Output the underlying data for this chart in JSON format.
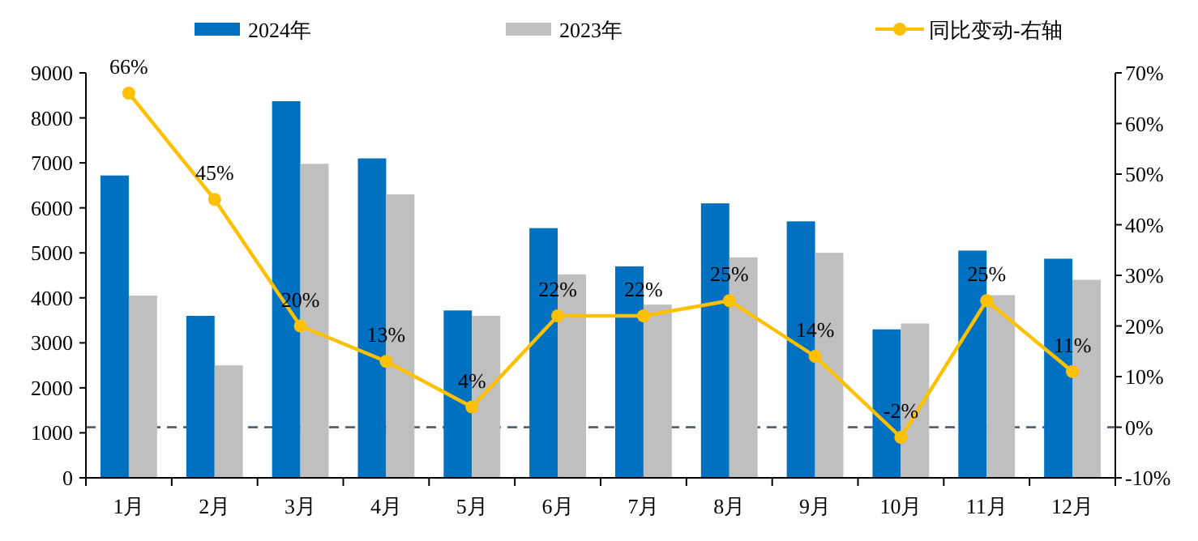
{
  "chart_data": {
    "type": "bar",
    "categories": [
      "1月",
      "2月",
      "3月",
      "4月",
      "5月",
      "6月",
      "7月",
      "8月",
      "9月",
      "10月",
      "11月",
      "12月"
    ],
    "series": [
      {
        "name": "2024年",
        "color": "#0070c0",
        "values": [
          6720,
          3600,
          8370,
          7100,
          3720,
          5550,
          4700,
          6100,
          5700,
          3300,
          5050,
          4870
        ]
      },
      {
        "name": "2023年",
        "color": "#bfbfbf",
        "values": [
          4050,
          2500,
          6980,
          6300,
          3600,
          4520,
          3850,
          4900,
          5000,
          3430,
          4060,
          4400
        ]
      },
      {
        "name": "同比变动-右轴",
        "type": "line",
        "axis": "y2",
        "color": "#ffc000",
        "marker": "circle",
        "values": [
          66,
          45,
          20,
          13,
          4,
          22,
          22,
          25,
          14,
          -2,
          25,
          11
        ],
        "value_labels": [
          "66%",
          "45%",
          "20%",
          "13%",
          "4%",
          "22%",
          "22%",
          "25%",
          "14%",
          "-2%",
          "25%",
          "11%"
        ]
      }
    ],
    "ylim": [
      0,
      9000
    ],
    "yticks": [
      0,
      1000,
      2000,
      3000,
      4000,
      5000,
      6000,
      7000,
      8000,
      9000
    ],
    "y2lim": [
      -10,
      70
    ],
    "y2ticks": [
      {
        "value": -10,
        "label": "-10%"
      },
      {
        "value": 0,
        "label": "0%"
      },
      {
        "value": 10,
        "label": "10%"
      },
      {
        "value": 20,
        "label": "20%"
      },
      {
        "value": 30,
        "label": "30%"
      },
      {
        "value": 40,
        "label": "40%"
      },
      {
        "value": 50,
        "label": "50%"
      },
      {
        "value": 60,
        "label": "60%"
      },
      {
        "value": 70,
        "label": "70%"
      }
    ],
    "ref_lines": [
      {
        "axis": "y2",
        "value": 0,
        "color": "#44546a",
        "line_style": "dashed"
      }
    ],
    "legend": "top"
  }
}
